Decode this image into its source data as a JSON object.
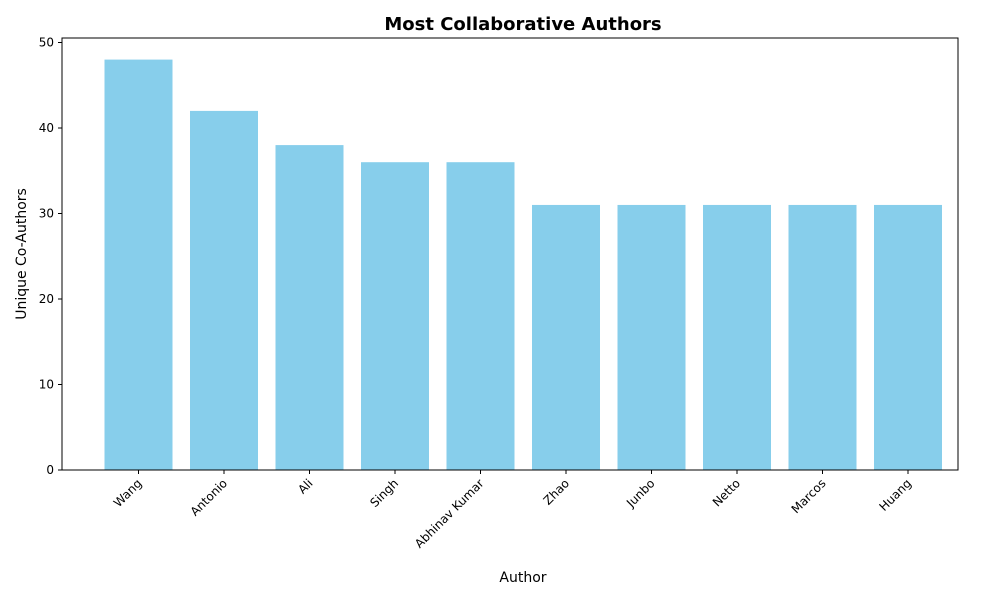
{
  "chart_data": {
    "type": "bar",
    "title": "Most Collaborative Authors",
    "xlabel": "Author",
    "ylabel": "Unique Co-Authors",
    "categories": [
      "Wang",
      "Antonio",
      "Ali",
      "Singh",
      "Abhinav Kumar",
      "Zhao",
      "Junbo",
      "Netto",
      "Marcos",
      "Huang"
    ],
    "values": [
      48,
      42,
      38,
      36,
      36,
      31,
      31,
      31,
      31,
      31
    ],
    "ylim": [
      0,
      50
    ],
    "yticks": [
      0,
      10,
      20,
      30,
      40,
      50
    ],
    "bar_color": "#87CEEB",
    "grid": false,
    "legend": "none",
    "xtick_rotation": 45
  }
}
